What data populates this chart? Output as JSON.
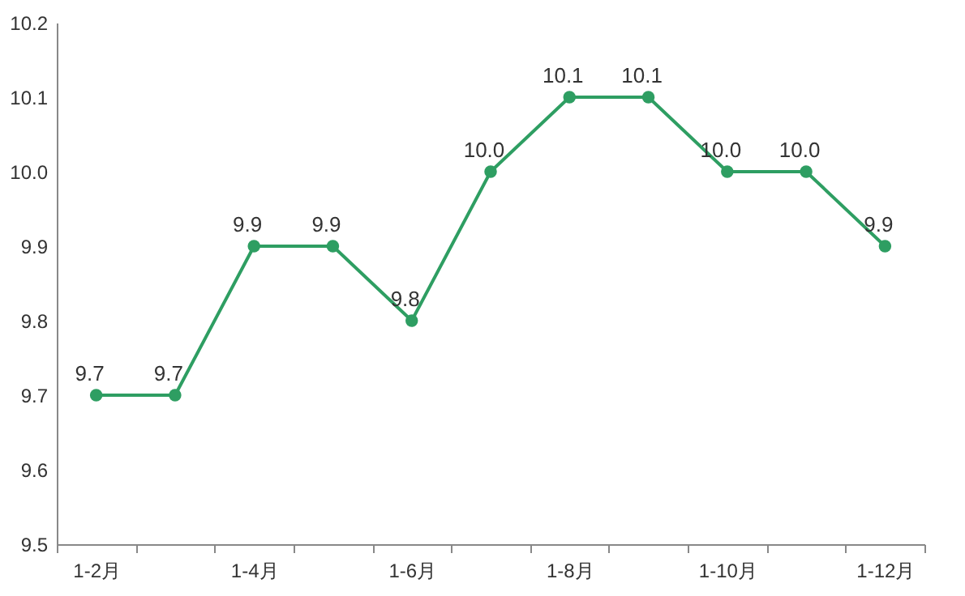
{
  "chart_data": {
    "type": "line",
    "categories": [
      "1-2月",
      null,
      "1-4月",
      null,
      "1-6月",
      null,
      "1-8月",
      null,
      "1-10月",
      null,
      "1-12月"
    ],
    "series": [
      {
        "color": "#2e9e62",
        "values": [
          9.7,
          9.7,
          9.9,
          9.9,
          9.8,
          10.0,
          10.1,
          10.1,
          10.0,
          10.0,
          9.9
        ],
        "value_labels": [
          "9.7",
          "9.7",
          "9.9",
          "9.9",
          "9.8",
          "10.0",
          "10.1",
          "10.1",
          "10.0",
          "10.0",
          "9.9"
        ]
      }
    ],
    "ylim": [
      9.5,
      10.2
    ],
    "yticks": [
      9.5,
      9.6,
      9.7,
      9.8,
      9.9,
      {
        "value": 10,
        "label": "10.0"
      },
      10.1,
      10.2
    ],
    "marker": "circle"
  }
}
